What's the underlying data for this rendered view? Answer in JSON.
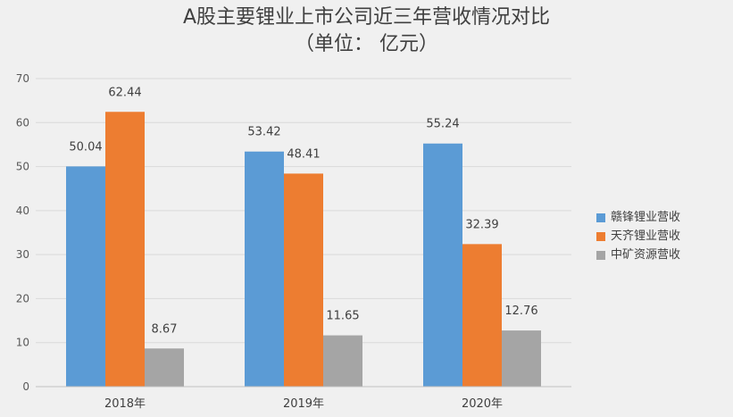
{
  "chart_data": {
    "type": "bar",
    "title": "A股主要锂业上市公司近三年营收情况对比",
    "subtitle": "（单位： 亿元）",
    "categories": [
      "2018年",
      "2019年",
      "2020年"
    ],
    "series": [
      {
        "name": "赣锋锂业营收",
        "color": "#5b9bd5",
        "values": [
          50.04,
          53.42,
          55.24
        ]
      },
      {
        "name": "天齐锂业营收",
        "color": "#ed7d31",
        "values": [
          62.44,
          48.41,
          32.39
        ]
      },
      {
        "name": "中矿资源营收",
        "color": "#a5a5a5",
        "values": [
          8.67,
          11.65,
          12.76
        ]
      }
    ],
    "ylim": [
      0,
      70
    ],
    "yticks": [
      0,
      10,
      20,
      30,
      40,
      50,
      60,
      70
    ],
    "grid": true,
    "legend_position": "right"
  }
}
